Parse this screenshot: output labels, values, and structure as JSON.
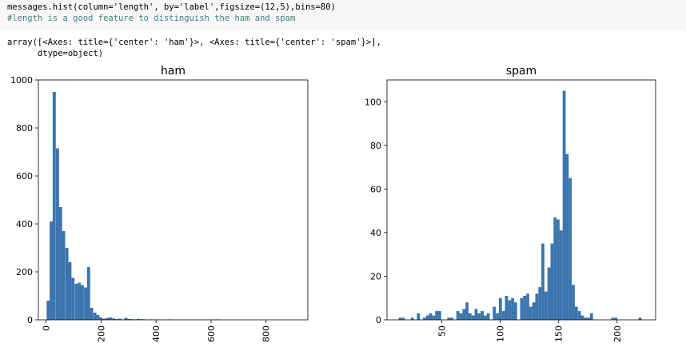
{
  "code": {
    "line1": "messages.hist(column='length', by='label',figsize=(12,5),bins=80)",
    "line2": "#length is a good feature to distinguish the ham and spam"
  },
  "output": {
    "line1": "array([<Axes: title={'center': 'ham'}>, <Axes: title={'center': 'spam'}>],",
    "line2": "      dtype=object)"
  },
  "colors": {
    "bar": "#3b75af"
  },
  "chart_data": [
    {
      "type": "bar",
      "title": "ham",
      "xlim": [
        -28,
        952
      ],
      "ylim": [
        0,
        1000
      ],
      "bin_width": 11.3,
      "x": [
        2,
        13,
        24,
        36,
        47,
        58,
        70,
        81,
        92,
        104,
        115,
        126,
        138,
        149,
        160,
        172,
        183,
        194,
        206,
        217,
        228,
        240,
        251,
        262,
        274,
        285,
        296,
        308,
        319,
        330,
        342,
        353,
        364,
        376,
        387,
        398,
        410,
        421,
        432,
        444,
        455,
        466,
        478,
        489,
        500,
        512,
        523,
        534,
        546,
        557,
        568,
        580,
        591,
        602,
        614,
        625
      ],
      "values": [
        80,
        410,
        950,
        715,
        470,
        370,
        300,
        240,
        175,
        150,
        155,
        145,
        135,
        220,
        50,
        30,
        20,
        10,
        5,
        8,
        10,
        6,
        3,
        5,
        2,
        8,
        4,
        3,
        2,
        4,
        3,
        2,
        1,
        2,
        1,
        2,
        1,
        1,
        1,
        2,
        1,
        1,
        1,
        1,
        1,
        1,
        1,
        1,
        1,
        1,
        1,
        1,
        1,
        1,
        2,
        1
      ],
      "xticks": [
        "0",
        "200",
        "400",
        "600",
        "800"
      ],
      "xtick_values": [
        0,
        200,
        400,
        600,
        800
      ],
      "yticks": [
        "0",
        "200",
        "400",
        "600",
        "800",
        "1000"
      ],
      "ytick_values": [
        0,
        200,
        400,
        600,
        800,
        1000
      ],
      "grid": false
    },
    {
      "type": "bar",
      "title": "spam",
      "xlim": [
        3,
        233
      ],
      "ylim": [
        0,
        110
      ],
      "bin_width": 2.6,
      "x": [
        13,
        15.6,
        18.2,
        20.8,
        23.4,
        26,
        28.6,
        31.2,
        33.8,
        36.4,
        39,
        41.6,
        44.2,
        46.8,
        49.4,
        52,
        54.6,
        57.2,
        59.8,
        62.4,
        65,
        67.6,
        70.2,
        72.8,
        75.4,
        78,
        80.6,
        83.2,
        85.8,
        88.4,
        91,
        93.6,
        96.2,
        98.8,
        101.4,
        104,
        106.6,
        109.2,
        111.8,
        114.4,
        117,
        119.6,
        122.2,
        124.8,
        127.4,
        130,
        132.6,
        135.2,
        137.8,
        140.4,
        143,
        145.6,
        148.2,
        150.8,
        153.4,
        156,
        158.6,
        161.2,
        163.8,
        166.4,
        169,
        171.6,
        174.2,
        176.8,
        179.4,
        182,
        184.6,
        187.2,
        189.8,
        192.4,
        195,
        197.6,
        200.2,
        202.8,
        205.4,
        208,
        210.6,
        213.2,
        215.8,
        218.4,
        221
      ],
      "values": [
        1,
        1,
        0,
        0,
        1,
        0,
        3,
        0,
        1,
        2,
        3,
        2,
        4,
        4,
        0,
        0,
        1,
        1,
        0,
        4,
        3,
        5,
        8,
        3,
        2,
        5,
        3,
        4,
        2,
        3,
        0,
        6,
        3,
        10,
        4,
        11,
        9,
        10,
        8,
        0,
        10,
        11,
        12,
        6,
        8,
        12,
        15,
        35,
        13,
        24,
        35,
        47,
        46,
        41,
        105,
        76,
        65,
        16,
        6,
        4,
        2,
        1,
        1,
        3,
        0,
        0,
        0,
        0,
        0,
        0,
        1,
        1,
        0,
        0,
        0,
        0,
        0,
        0,
        0,
        1,
        0
      ],
      "xticks": [
        "50",
        "100",
        "150",
        "200"
      ],
      "xtick_values": [
        50,
        100,
        150,
        200
      ],
      "yticks": [
        "0",
        "20",
        "40",
        "60",
        "80",
        "100"
      ],
      "ytick_values": [
        0,
        20,
        40,
        60,
        80,
        100
      ],
      "grid": false
    }
  ]
}
